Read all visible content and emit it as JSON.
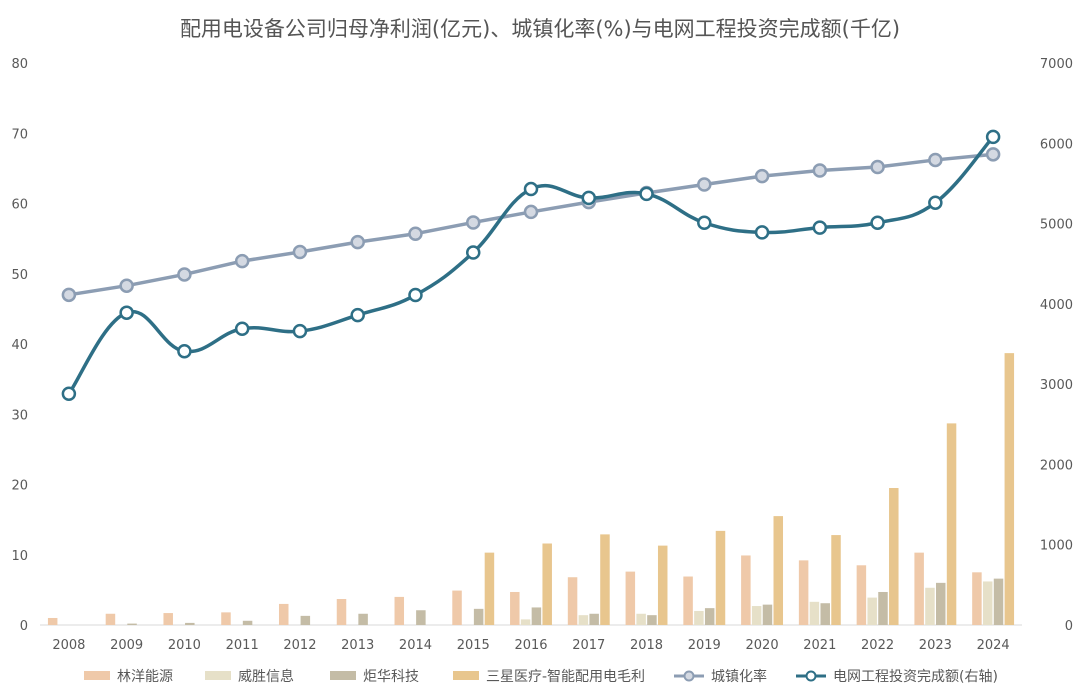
{
  "chart_data": {
    "type": "bar+line",
    "title": "配用电设备公司归母净利润(亿元)、城镇化率(%)与电网工程投资完成额(千亿)",
    "categories": [
      "2008",
      "2009",
      "2010",
      "2011",
      "2012",
      "2013",
      "2014",
      "2015",
      "2016",
      "2017",
      "2018",
      "2019",
      "2020",
      "2021",
      "2022",
      "2023",
      "2024"
    ],
    "y_left": {
      "min": 0,
      "max": 80,
      "step": 10,
      "ticks": [
        "0",
        "10",
        "20",
        "30",
        "40",
        "50",
        "60",
        "70",
        "80"
      ]
    },
    "y_right": {
      "min": 0,
      "max": 7000,
      "step": 1000,
      "ticks": [
        "0",
        "1000",
        "2000",
        "3000",
        "4000",
        "5000",
        "6000",
        "7000"
      ]
    },
    "bar_series": [
      {
        "name": "林洋能源",
        "color": "#efc9a9",
        "values": [
          1.0,
          1.6,
          1.7,
          1.8,
          3.0,
          3.7,
          4.0,
          4.9,
          4.7,
          6.8,
          7.6,
          6.9,
          9.9,
          9.2,
          8.5,
          10.3,
          7.5
        ]
      },
      {
        "name": "威胜信息",
        "color": "#e6e0c8",
        "values": [
          0,
          0,
          0,
          0,
          0,
          0,
          0,
          0,
          0.8,
          1.4,
          1.6,
          2.0,
          2.7,
          3.3,
          3.9,
          5.3,
          6.2
        ]
      },
      {
        "name": "炬华科技",
        "color": "#c4bca6",
        "values": [
          0,
          0.2,
          0.3,
          0.6,
          1.3,
          1.6,
          2.1,
          2.3,
          2.5,
          1.6,
          1.4,
          2.4,
          2.9,
          3.1,
          4.7,
          6.0,
          6.6
        ]
      },
      {
        "name": "三星医疗-智能配用电毛利",
        "color": "#e8c68e",
        "values": [
          0,
          0,
          0,
          0,
          0,
          0,
          0,
          10.3,
          11.6,
          12.9,
          11.3,
          13.4,
          15.5,
          12.8,
          19.5,
          28.7,
          38.7
        ]
      }
    ],
    "line_series": [
      {
        "name": "城镇化率",
        "axis": "left",
        "color": "#8c9db3",
        "marker_fill": "#d4d9e2",
        "values": [
          47.0,
          48.3,
          49.9,
          51.8,
          53.1,
          54.5,
          55.7,
          57.3,
          58.8,
          60.2,
          61.5,
          62.7,
          63.9,
          64.7,
          65.2,
          66.2,
          67.0
        ]
      },
      {
        "name": "电网工程投资完成额(右轴)",
        "axis": "right",
        "color": "#2e6f86",
        "marker_fill": "#ffffff",
        "values": [
          2880,
          3890,
          3410,
          3690,
          3660,
          3860,
          4110,
          4640,
          5430,
          5320,
          5370,
          5010,
          4890,
          4950,
          5010,
          5260,
          6080
        ]
      }
    ],
    "legend_position": "bottom",
    "grid": false
  }
}
